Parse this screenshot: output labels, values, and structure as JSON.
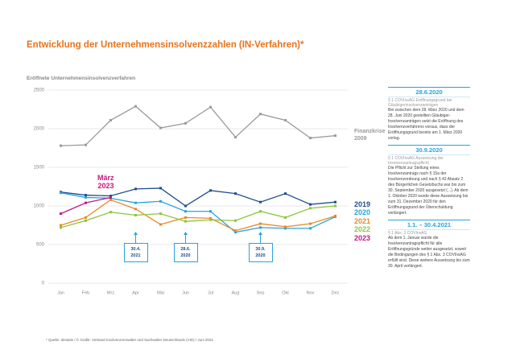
{
  "chart_data": {
    "type": "line",
    "title": "Entwicklung der Unternehmensinsolvenzzahlen (IN-Verfahren)*",
    "subtitle": "Eröffnete Unternehmensinsolvenzverfahren",
    "categories": [
      "Jan",
      "Feb",
      "Mrz",
      "Apr",
      "Mai",
      "Jun",
      "Jul",
      "Aug",
      "Sep",
      "Okt",
      "Nov",
      "Dez"
    ],
    "ylim": [
      0,
      2500
    ],
    "yticks": [
      0,
      500,
      1000,
      1500,
      2000,
      2500
    ],
    "grid": true,
    "series": [
      {
        "name": "Finanzkrise 2009",
        "color": "#9a9a9a",
        "values": [
          1780,
          1790,
          2110,
          2290,
          2010,
          2070,
          2280,
          1890,
          2190,
          2110,
          1880,
          1910
        ]
      },
      {
        "name": "2019",
        "color": "#1f4e8c",
        "values": [
          1180,
          1140,
          1130,
          1220,
          1230,
          1000,
          1200,
          1160,
          1050,
          1160,
          1020,
          1050
        ]
      },
      {
        "name": "2020",
        "color": "#29a3dc",
        "values": [
          1170,
          1110,
          1100,
          1040,
          1060,
          930,
          930,
          660,
          720,
          710,
          710,
          860
        ]
      },
      {
        "name": "2021",
        "color": "#e8892b",
        "values": [
          750,
          850,
          1080,
          960,
          760,
          850,
          840,
          680,
          770,
          730,
          770,
          870
        ]
      },
      {
        "name": "2022",
        "color": "#8cc63f",
        "values": [
          720,
          810,
          920,
          880,
          900,
          800,
          820,
          810,
          930,
          850,
          970,
          1000
        ]
      },
      {
        "name": "2023",
        "color": "#c2187e",
        "values": [
          900,
          1040,
          1110,
          null,
          null,
          null,
          null,
          null,
          null,
          null,
          null,
          null
        ]
      }
    ],
    "annotations": [
      {
        "text": "März 2023",
        "category": "Mrz"
      },
      {
        "text": "30.4. 2021",
        "category": "Apr"
      },
      {
        "text": "28.6. 2020",
        "category": "Jun"
      },
      {
        "text": "30.9. 2020",
        "category": "Sep"
      }
    ]
  },
  "notes": [
    {
      "heading": "28.6.2020",
      "subheading": "§ 1 COVInsAG Eröffnungsgrund bei Gläubigerinsolvenzanträgen",
      "text": "Bei zwischen dem 28. März 2020 und dem 28. Juni 2020 gestellten Gläubiger-Insolvenzanträgen setzt die Eröffnung des Insolvenzverfahrens voraus, dass der Eröffnungsgrund bereits am 1. März 2020 vorlag."
    },
    {
      "heading": "30.9.2020",
      "subheading": "§ 1 COVInsAG Aussetzung der Insolvenzantragspflicht",
      "text": "Die Pflicht zur Stellung eines Insolvenzantrags nach § 15a der Insolvenzordnung und nach § 42 Absatz 2 des Bürgerlichen Gesetzbuchs war bis zum 30. September 2020 ausgesetzt (...). Ab dem 1. Oktober 2020 wurde diese Aussetzung bis zum 31. Dezember 2020 für den Eröffnungsgrund der Überschuldung verlängert."
    },
    {
      "heading": "1.1. – 30.4.2021",
      "subheading": "§ 1 Abs. 3 COVInsAG",
      "text": "Ab dem 1. Januar wurde die Insolvenzantragspflicht für alle Eröffnungsgründe weiter ausgesetzt, soweit die Bedingungen des § 1 Abs. 3 COVInsAG erfüllt sind. Diese weitere Aussetzung bis zum 30. April verlängert."
    }
  ],
  "footnote": "* Quelle: destatis / © Grafik: Verband Insolvenzverwalter und Sachwalter Deutschlands (VID) / Juni 2021"
}
